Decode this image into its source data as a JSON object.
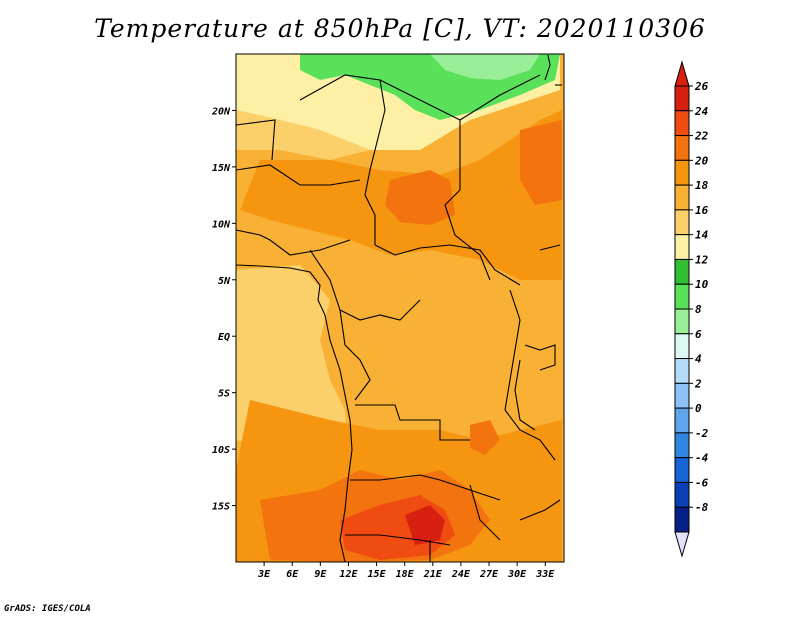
{
  "title": "Temperature at 850hPa [C], VT: 2020110306",
  "credit": "GrADS: IGES/COLA",
  "map": {
    "lat_labels": [
      "20N",
      "15N",
      "10N",
      "5N",
      "EQ",
      "5S",
      "10S",
      "15S"
    ],
    "lat_values": [
      20,
      15,
      10,
      5,
      0,
      -5,
      -10,
      -15
    ],
    "lon_labels": [
      "3E",
      "6E",
      "9E",
      "12E",
      "15E",
      "18E",
      "21E",
      "24E",
      "27E",
      "30E",
      "33E"
    ],
    "lon_values": [
      3,
      6,
      9,
      12,
      15,
      18,
      21,
      24,
      27,
      30,
      33
    ],
    "lon_range": [
      0,
      35
    ],
    "lat_range": [
      -20,
      25
    ]
  },
  "colorbar": {
    "labels": [
      "26",
      "24",
      "22",
      "20",
      "18",
      "16",
      "14",
      "12",
      "10",
      "8",
      "6",
      "4",
      "2",
      "0",
      "-2",
      "-4",
      "-6",
      "-8"
    ],
    "bins": [
      {
        "color": "#d72010"
      },
      {
        "color": "#f04b10"
      },
      {
        "color": "#f3730e"
      },
      {
        "color": "#f6950f"
      },
      {
        "color": "#f9b135"
      },
      {
        "color": "#fbd06b"
      },
      {
        "color": "#fdf0a4"
      },
      {
        "color": "#32be32"
      },
      {
        "color": "#5ae15a"
      },
      {
        "color": "#98ef98"
      },
      {
        "color": "#dcf8f2"
      },
      {
        "color": "#b4dcfa"
      },
      {
        "color": "#8cc2f5"
      },
      {
        "color": "#5ea5ee"
      },
      {
        "color": "#2f87e2"
      },
      {
        "color": "#1763d6"
      },
      {
        "color": "#0b3fb6"
      },
      {
        "color": "#061f86"
      }
    ],
    "top_color": "#d72010",
    "bottom_color": "#e1e1fb"
  }
}
